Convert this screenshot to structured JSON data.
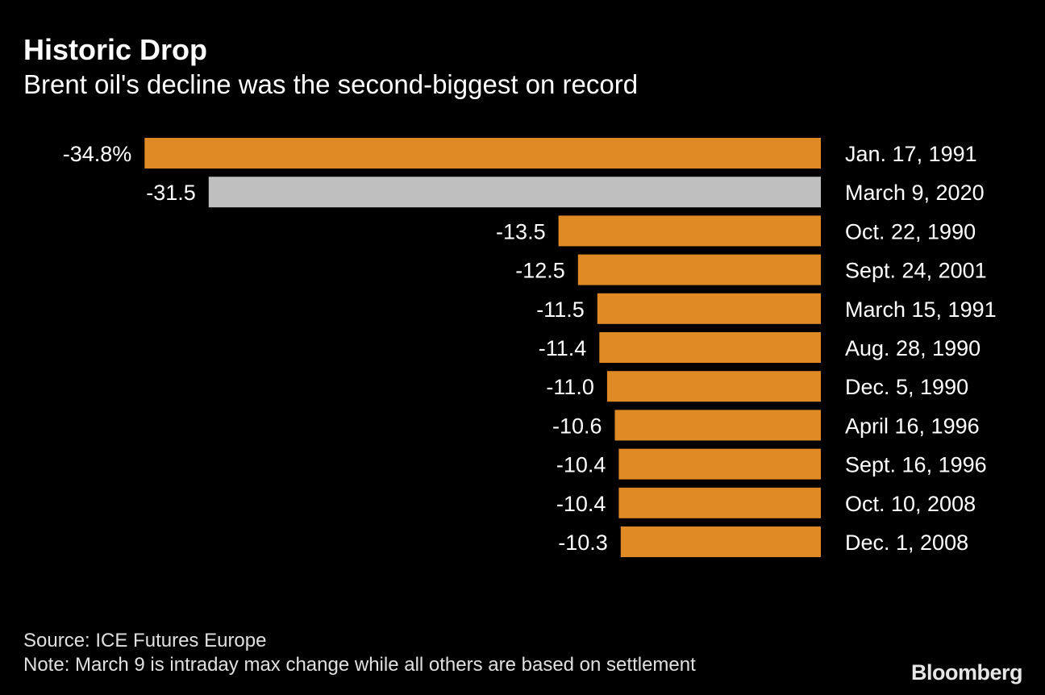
{
  "header": {
    "title": "Historic Drop",
    "subtitle": "Brent oil's decline was the second-biggest on record"
  },
  "chart_data": {
    "type": "bar",
    "orientation": "horizontal",
    "categories": [
      "Jan. 17, 1991",
      "March 9, 2020",
      "Oct. 22, 1990",
      "Sept. 24, 2001",
      "March 15, 1991",
      "Aug. 28, 1990",
      "Dec. 5, 1990",
      "April 16, 1996",
      "Sept. 16, 1996",
      "Oct. 10, 2008",
      "Dec. 1, 2008"
    ],
    "values": [
      -34.8,
      -31.5,
      -13.5,
      -12.5,
      -11.5,
      -11.4,
      -11.0,
      -10.6,
      -10.4,
      -10.4,
      -10.3
    ],
    "value_labels": [
      "-34.8%",
      "-31.5",
      "-13.5",
      "-12.5",
      "-11.5",
      "-11.4",
      "-11.0",
      "-10.6",
      "-10.4",
      "-10.4",
      "-10.3"
    ],
    "highlight_index": 1,
    "colors": {
      "bar": "#e08a26",
      "highlight": "#bfbfbf",
      "background": "#000000",
      "text": "#ffffff"
    },
    "unit": "%",
    "grid": false,
    "legend": "none"
  },
  "footer": {
    "source": "Source: ICE Futures Europe",
    "note": "Note: March 9 is intraday max change while all others are based on settlement",
    "brand": "Bloomberg"
  }
}
